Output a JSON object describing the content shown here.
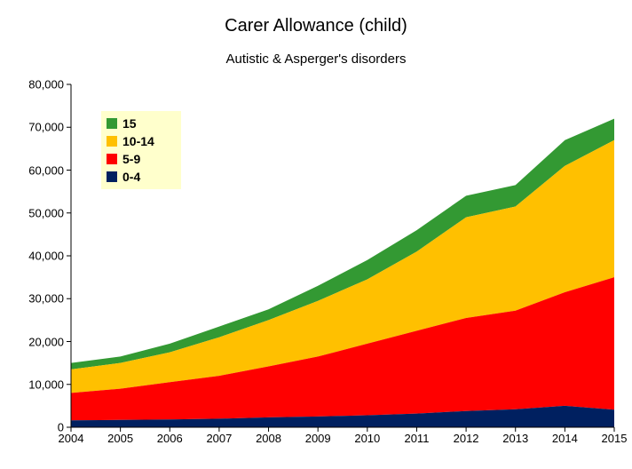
{
  "chart": {
    "type": "area",
    "title": "Carer Allowance (child)",
    "subtitle": "Autistic & Asperger's disorders",
    "title_fontsize": 20,
    "subtitle_fontsize": 15,
    "label_fontsize": 13,
    "background_color": "#ffffff",
    "axis_color": "#000000",
    "tick_color": "#000000",
    "categories": [
      "2004",
      "2005",
      "2006",
      "2007",
      "2008",
      "2009",
      "2010",
      "2011",
      "2012",
      "2013",
      "2014",
      "2015"
    ],
    "x_positions": [
      2004,
      2005,
      2006,
      2007,
      2008,
      2009,
      2010,
      2011,
      2012,
      2013,
      2014,
      2015
    ],
    "xlim": [
      2004,
      2015
    ],
    "ylim": [
      0,
      80000
    ],
    "ytick_step": 10000,
    "ytick_labels": [
      "0",
      "10,000",
      "20,000",
      "30,000",
      "40,000",
      "50,000",
      "60,000",
      "70,000",
      "80,000"
    ],
    "series": [
      {
        "key": "0-4",
        "label": "0-4",
        "color": "#002060",
        "cum": [
          1600,
          1700,
          1800,
          2000,
          2300,
          2500,
          2800,
          3200,
          3800,
          4200,
          5000,
          4100
        ]
      },
      {
        "key": "5-9",
        "label": "5-9",
        "color": "#ff0000",
        "cum": [
          8000,
          9000,
          10500,
          12000,
          14200,
          16500,
          19500,
          22500,
          25500,
          27200,
          31500,
          35000
        ]
      },
      {
        "key": "10-14",
        "label": "10-14",
        "color": "#ffc000",
        "cum": [
          13500,
          15000,
          17500,
          21000,
          25000,
          29500,
          34500,
          41000,
          49000,
          51500,
          61000,
          67000
        ]
      },
      {
        "key": "15",
        "label": "15",
        "color": "#339933",
        "cum": [
          15000,
          16500,
          19500,
          23500,
          27500,
          33000,
          39000,
          46000,
          54000,
          56500,
          67000,
          72000
        ]
      }
    ],
    "legend": {
      "background": "#ffffcc",
      "fontsize": 14,
      "order": [
        "15",
        "10-14",
        "5-9",
        "0-4"
      ]
    }
  }
}
